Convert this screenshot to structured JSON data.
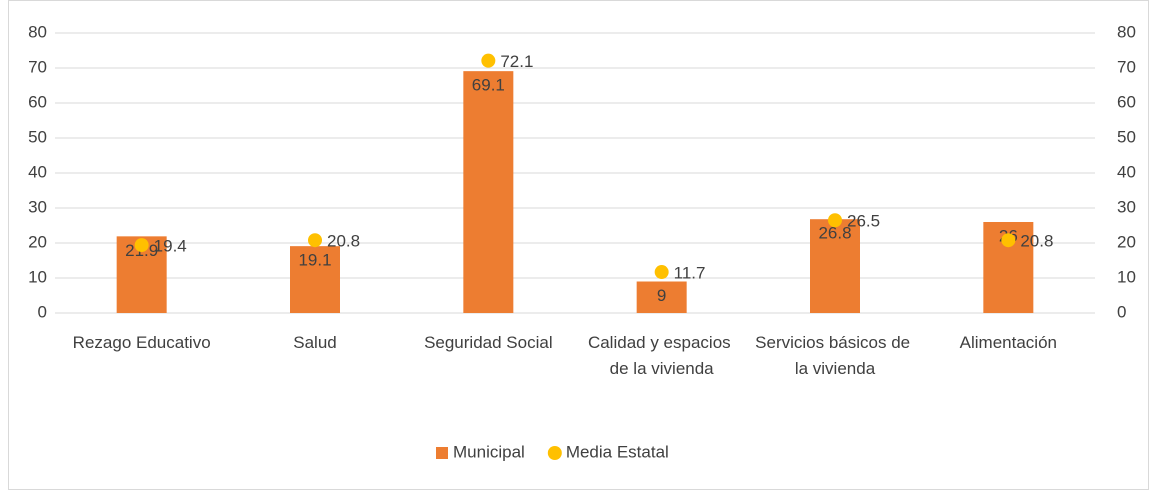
{
  "chart_data": {
    "type": "bar",
    "categories": [
      "Rezago Educativo",
      "Salud",
      "Seguridad Social",
      "Calidad y espacios de la vivienda",
      "Servicios básicos de la vivienda",
      "Alimentación"
    ],
    "series": [
      {
        "name": "Municipal",
        "type": "bar",
        "color": "#ed7d31",
        "values": [
          21.9,
          19.1,
          69.1,
          9,
          26.8,
          26
        ]
      },
      {
        "name": "Media Estatal",
        "type": "scatter",
        "axis": "y2",
        "color": "#ffc000",
        "values": [
          19.4,
          20.8,
          72.1,
          11.7,
          26.5,
          20.8
        ]
      }
    ],
    "ylim": [
      0,
      80
    ],
    "yticks": [
      0,
      10,
      20,
      30,
      40,
      50,
      60,
      70,
      80
    ],
    "y2lim": [
      0,
      80
    ],
    "y2ticks": [
      0,
      10,
      20,
      30,
      40,
      50,
      60,
      70,
      80
    ],
    "grid": true,
    "legend": "bottom"
  }
}
